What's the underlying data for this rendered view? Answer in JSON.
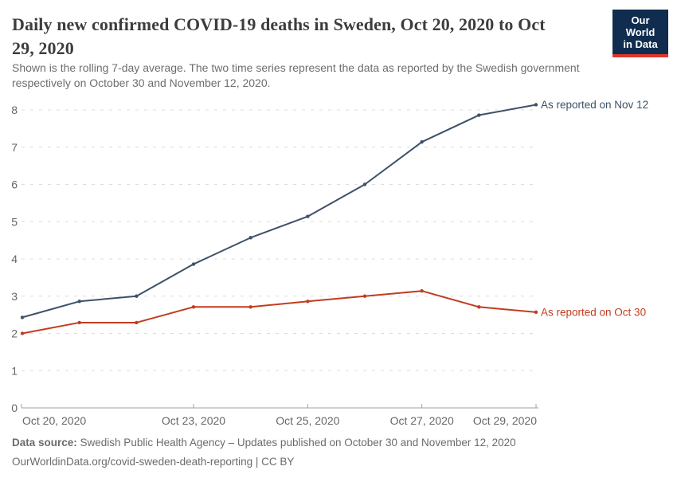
{
  "header": {
    "title": "Daily new confirmed COVID-19 deaths in Sweden, Oct 20, 2020 to Oct 29, 2020",
    "title_lines": [
      "Daily new confirmed COVID-19 deaths in Sweden, Oct 20, 2020 to Oct",
      "29, 2020"
    ],
    "subtitle": "Shown is the rolling 7-day average. The two time series represent the data as reported by the Swedish government respectively on October 30 and November 12, 2020.",
    "subtitle_lines": [
      "Shown is the rolling 7-day average. The two time series represent the data as reported by the Swedish government",
      "respectively on October 30 and November 12, 2020."
    ],
    "logo": {
      "line1": "Our World",
      "line2": "in Data",
      "bg_color": "#102d50",
      "accent_color": "#e0352b"
    }
  },
  "chart_data": {
    "type": "line",
    "title": "Daily new confirmed COVID-19 deaths in Sweden, Oct 20, 2020 to Oct 29, 2020",
    "x": [
      "Oct 20, 2020",
      "Oct 21, 2020",
      "Oct 22, 2020",
      "Oct 23, 2020",
      "Oct 24, 2020",
      "Oct 25, 2020",
      "Oct 26, 2020",
      "Oct 27, 2020",
      "Oct 28, 2020",
      "Oct 29, 2020"
    ],
    "series": [
      {
        "name": "As reported on Nov 12",
        "color": "#3d5168",
        "values": [
          2.43,
          2.86,
          3.0,
          3.86,
          4.57,
          5.14,
          6.0,
          7.14,
          7.86,
          8.14
        ]
      },
      {
        "name": "As reported on Oct 30",
        "color": "#c13c1e",
        "values": [
          2.0,
          2.29,
          2.29,
          2.71,
          2.71,
          2.86,
          3.0,
          3.14,
          2.71,
          2.57
        ]
      }
    ],
    "ylim": [
      0,
      8.2
    ],
    "yticks": [
      0,
      1,
      2,
      3,
      4,
      5,
      6,
      7,
      8
    ],
    "x_ticks": [
      {
        "day": 0,
        "label": "Oct 20, 2020",
        "anchor": "start"
      },
      {
        "day": 3,
        "label": "Oct 23, 2020",
        "anchor": "middle"
      },
      {
        "day": 5,
        "label": "Oct 25, 2020",
        "anchor": "middle"
      },
      {
        "day": 7,
        "label": "Oct 27, 2020",
        "anchor": "middle"
      },
      {
        "day": 9,
        "label": "Oct 29, 2020",
        "anchor": "end"
      }
    ],
    "grid": true,
    "legend_position": "end-of-line",
    "colors": {
      "grid": "#dcdcdc",
      "axis": "#a1a1a1",
      "tick_text": "#666666"
    }
  },
  "footer": {
    "source_label": "Data source:",
    "source_text": " Swedish Public Health Agency – Updates published on October 30 and November 12, 2020",
    "link_line": "OurWorldinData.org/covid-sweden-death-reporting | CC BY"
  }
}
